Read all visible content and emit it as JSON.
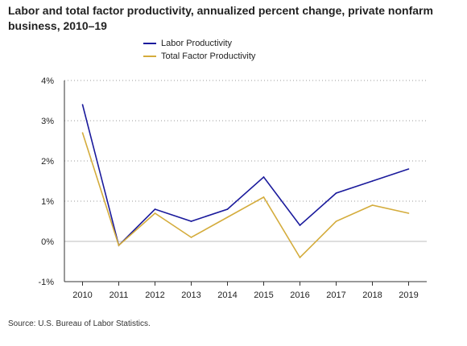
{
  "title": "Labor and total factor productivity, annualized percent change, private nonfarm business, 2010–19",
  "source": "Source: U.S. Bureau of Labor Statistics.",
  "chart_data": {
    "type": "line",
    "title": "Labor and total factor productivity, annualized percent change, private nonfarm business, 2010–19",
    "xlabel": "",
    "ylabel": "",
    "x": [
      "2010",
      "2011",
      "2012",
      "2013",
      "2014",
      "2015",
      "2016",
      "2017",
      "2018",
      "2019"
    ],
    "ylim": [
      -1,
      4
    ],
    "yticks": [
      -1,
      0,
      1,
      2,
      3,
      4
    ],
    "ytick_labels": [
      "-1%",
      "0%",
      "1%",
      "2%",
      "3%",
      "4%"
    ],
    "grid": "horizontal dotted",
    "legend_position": "top",
    "series": [
      {
        "name": "Labor Productivity",
        "color": "#1a1a9c",
        "values": [
          3.4,
          -0.1,
          0.8,
          0.5,
          0.8,
          1.6,
          0.4,
          1.2,
          1.5,
          1.8
        ]
      },
      {
        "name": "Total Factor Productivity",
        "color": "#d4ac3c",
        "values": [
          2.7,
          -0.1,
          0.7,
          0.1,
          0.6,
          1.1,
          -0.4,
          0.5,
          0.9,
          0.7
        ]
      }
    ]
  }
}
